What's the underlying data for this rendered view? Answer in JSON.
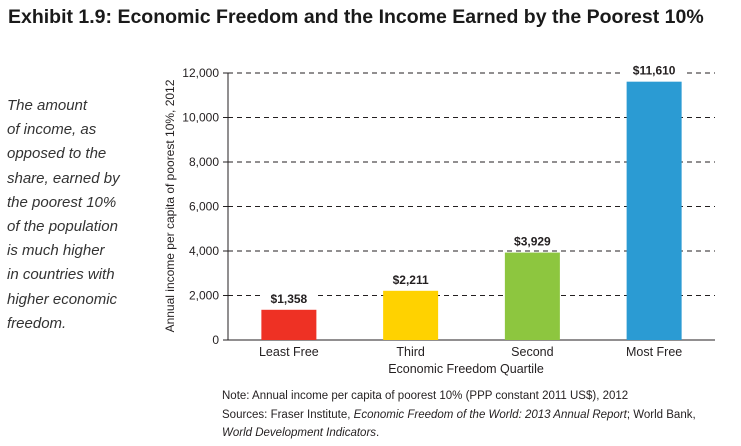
{
  "title": "Exhibit 1.9: Economic Freedom and the Income Earned by the Poorest 10%",
  "sidebar_lines": [
    "The amount",
    "of income, as",
    "opposed to the",
    "share, earned by",
    "the poorest 10%",
    "of the population",
    "is much higher",
    "in countries with",
    "higher economic",
    "freedom."
  ],
  "chart_data": {
    "type": "bar",
    "categories": [
      "Least Free",
      "Third",
      "Second",
      "Most Free"
    ],
    "values": [
      1358,
      2211,
      3929,
      11610
    ],
    "data_labels": [
      "$1,358",
      "$2,211",
      "$3,929",
      "$11,610"
    ],
    "bar_colors": [
      "#ee3124",
      "#ffd200",
      "#8dc63f",
      "#2b9bd3"
    ],
    "xlabel": "Economic Freedom Quartile",
    "ylabel": "Annual income per capita of poorest 10%, 2012",
    "ylim": [
      0,
      12000
    ],
    "yticks": [
      0,
      2000,
      4000,
      6000,
      8000,
      10000,
      12000
    ],
    "ytick_labels": [
      "0",
      "2,000",
      "4,000",
      "6,000",
      "8,000",
      "10,000",
      "12,000"
    ],
    "grid": "dashed horizontal"
  },
  "notes": {
    "note": "Note: Annual income per capita of poorest 10% (PPP constant 2011 US$), 2012",
    "sources_prefix": "Sources: Fraser Institute, ",
    "sources_title": "Economic Freedom of the World: 2013 Annual Report",
    "sources_middle": "; World Bank,",
    "sources_title2": "World Development Indicators",
    "sources_end": "."
  }
}
